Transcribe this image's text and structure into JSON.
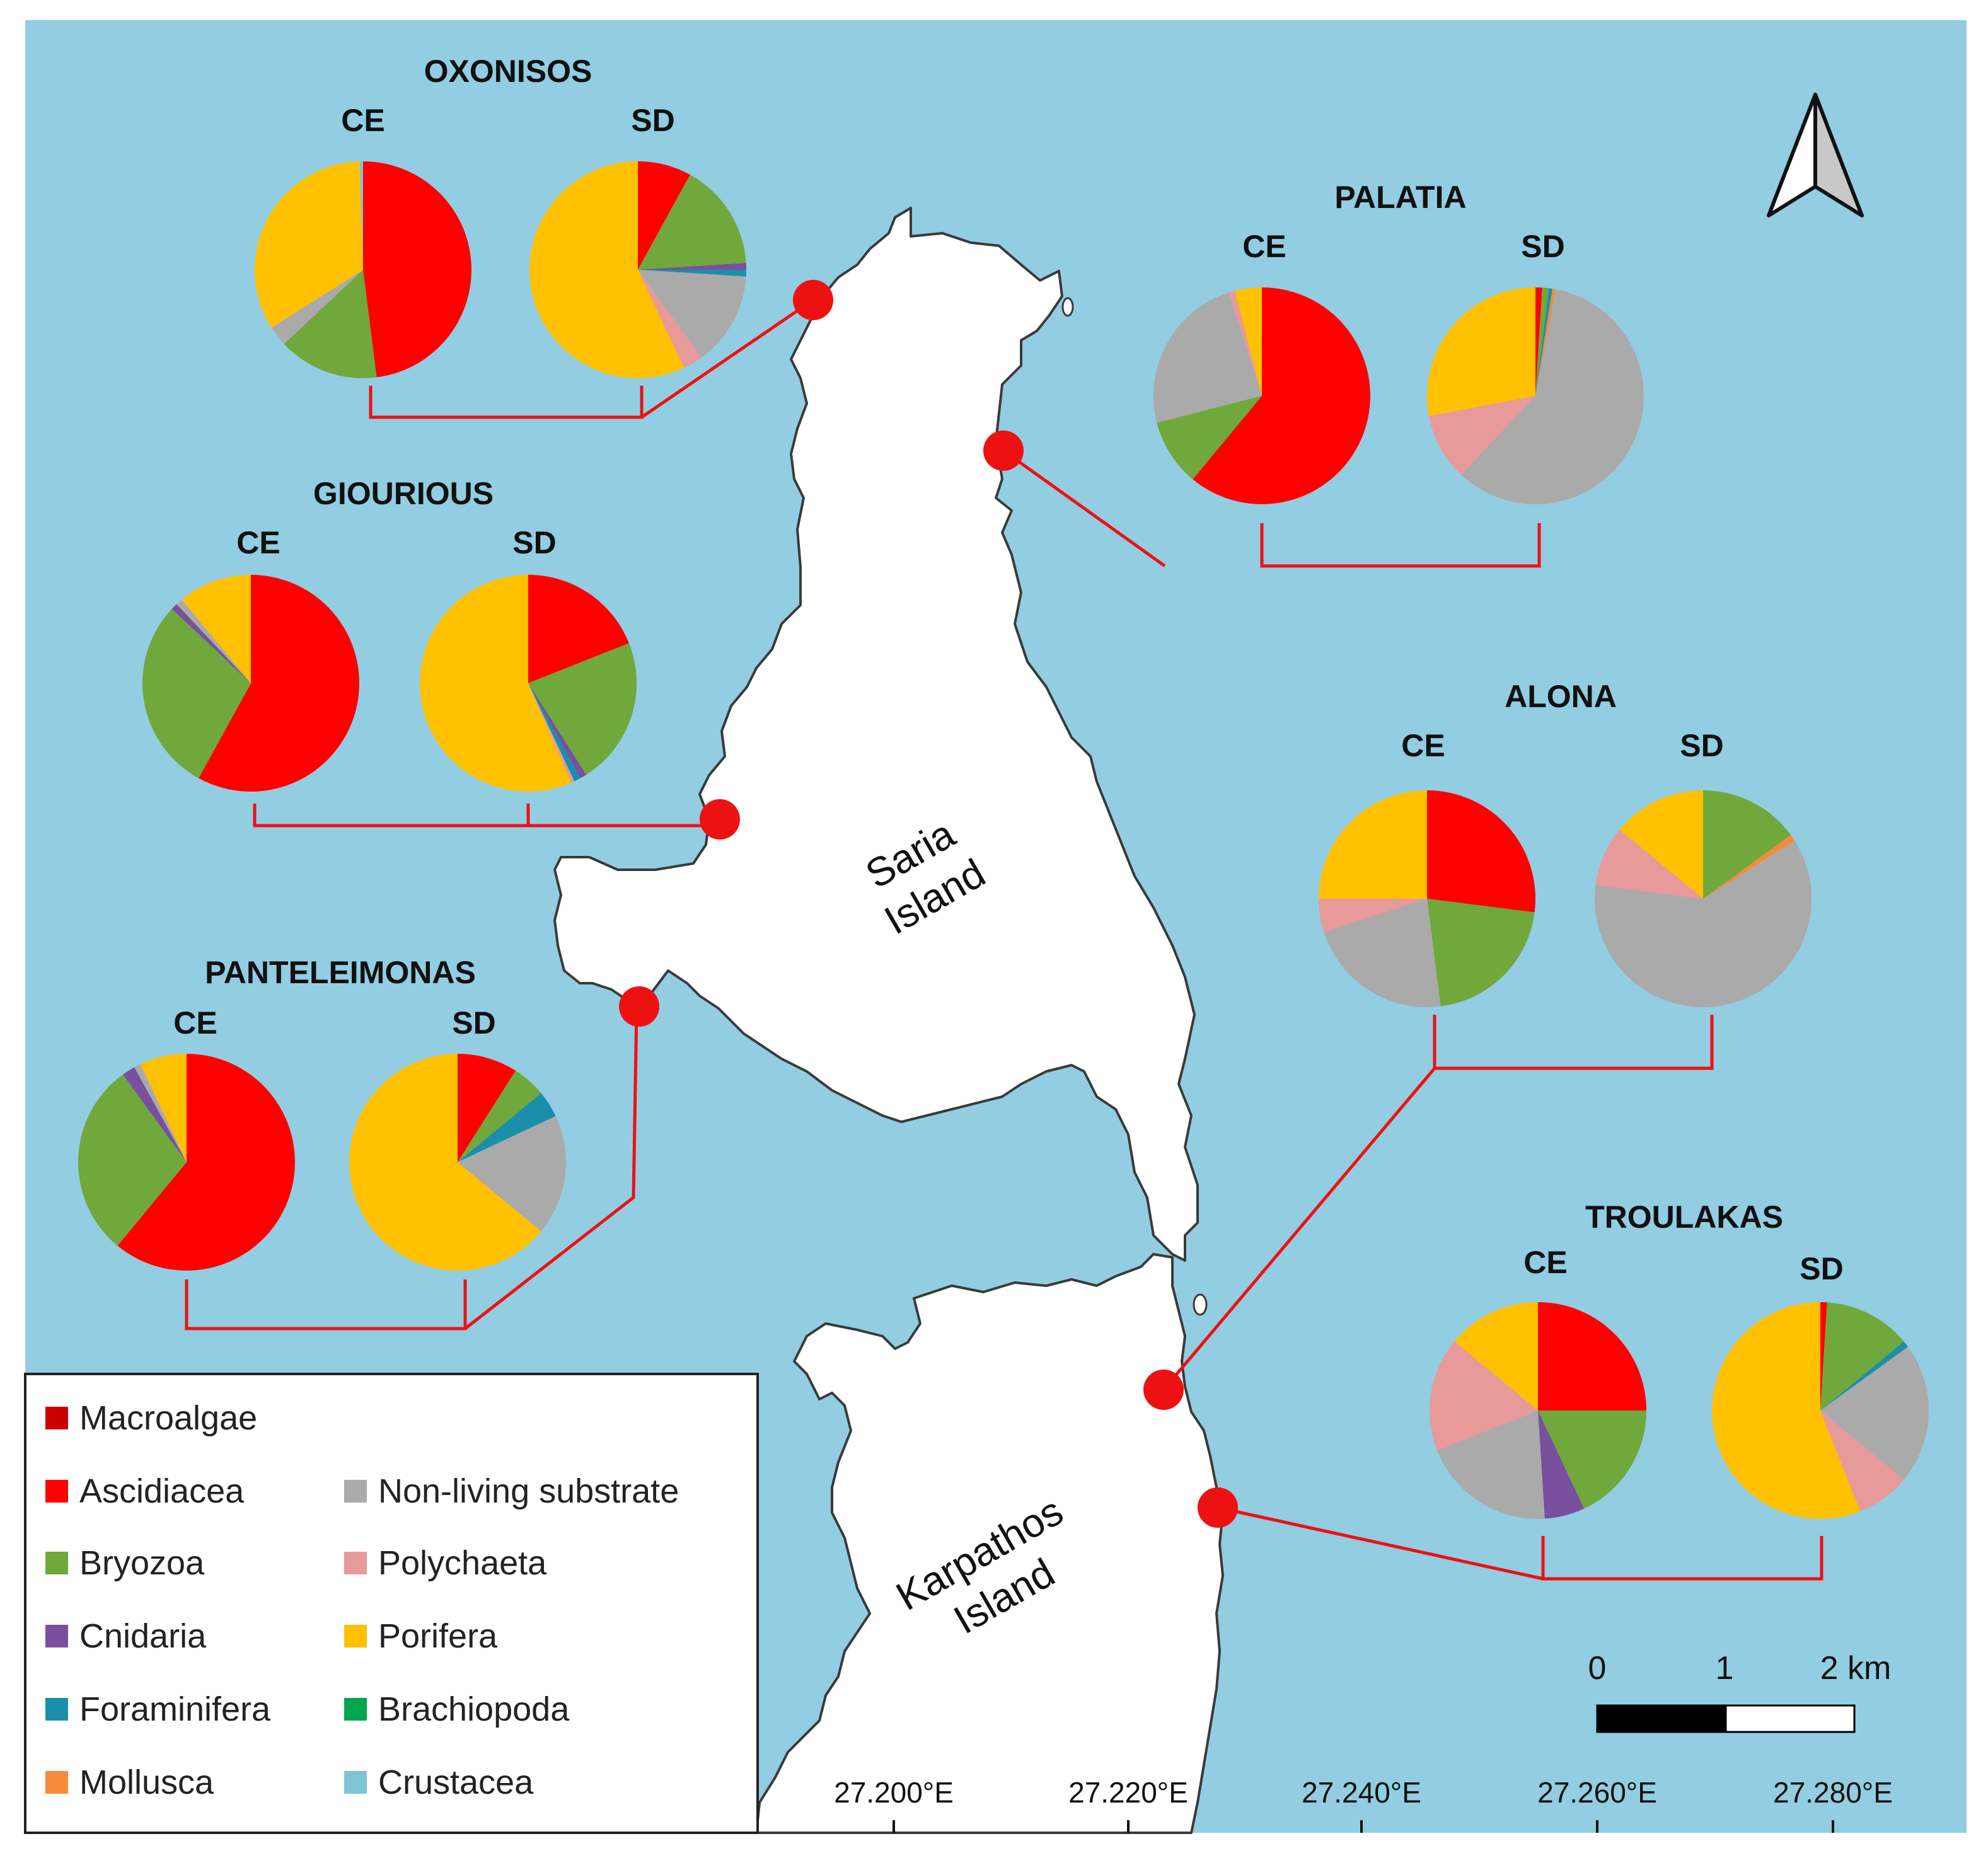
{
  "map": {
    "islands": [
      {
        "name": "saria",
        "label_lines": [
          "Saria",
          "Island"
        ]
      },
      {
        "name": "karpathos",
        "label_lines": [
          "Karpathos",
          "Island"
        ]
      }
    ],
    "colors": {
      "sea": "#92cde2",
      "land": "#ffffff",
      "coast": "#3a3a3a",
      "connector": "#ee1111",
      "site_marker": "#ee1111"
    },
    "column_labels": {
      "ce": "CE",
      "sd": "SD"
    },
    "scale_bar": {
      "labels": [
        "0",
        "1",
        "2 km"
      ]
    },
    "longitude_ticks": [
      "27.200°E",
      "27.220°E",
      "27.240°E",
      "27.260°E",
      "27.280°E"
    ],
    "north_arrow": {
      "icon": "north-arrow-icon"
    }
  },
  "legend": {
    "items": [
      {
        "label": "Macroalgae",
        "color": "#cc0000"
      },
      {
        "label": "Ascidiacea",
        "color": "#ff0000"
      },
      {
        "label": "Bryozoa",
        "color": "#70a83c"
      },
      {
        "label": "Cnidaria",
        "color": "#7a4f9e"
      },
      {
        "label": "Foraminifera",
        "color": "#1b8faa"
      },
      {
        "label": "Mollusca",
        "color": "#f58a3a"
      },
      {
        "label": "Non-living substrate",
        "color": "#aaaaaa"
      },
      {
        "label": "Polychaeta",
        "color": "#e8999a"
      },
      {
        "label": "Porifera",
        "color": "#ffc000"
      },
      {
        "label": "Brachiopoda",
        "color": "#00a650"
      },
      {
        "label": "Crustacea",
        "color": "#7fc3d6"
      }
    ]
  },
  "chart_data": {
    "type": "pie",
    "category_order": [
      "Macroalgae",
      "Ascidiacea",
      "Bryozoa",
      "Cnidaria",
      "Foraminifera",
      "Mollusca",
      "Non-living substrate",
      "Polychaeta",
      "Porifera",
      "Brachiopoda",
      "Crustacea"
    ],
    "sites": [
      {
        "name": "OXONISOS",
        "ce": {
          "Ascidiacea": 48,
          "Bryozoa": 15,
          "Crustacea": 0.5,
          "Non-living substrate": 3,
          "Porifera": 33.5
        },
        "sd": {
          "Ascidiacea": 8,
          "Bryozoa": 16,
          "Cnidaria": 1,
          "Foraminifera": 1,
          "Non-living substrate": 14,
          "Polychaeta": 3,
          "Porifera": 57
        }
      },
      {
        "name": "PALATIA",
        "ce": {
          "Ascidiacea": 61,
          "Bryozoa": 10,
          "Non-living substrate": 24,
          "Polychaeta": 1,
          "Porifera": 4
        },
        "sd": {
          "Ascidiacea": 1,
          "Mollusca": 0.5,
          "Bryozoa": 1,
          "Foraminifera": 0.5,
          "Non-living substrate": 59,
          "Polychaeta": 10,
          "Porifera": 28
        }
      },
      {
        "name": "GIOURIOUS",
        "ce": {
          "Ascidiacea": 58,
          "Bryozoa": 29,
          "Cnidaria": 1,
          "Non-living substrate": 1,
          "Porifera": 11
        },
        "sd": {
          "Ascidiacea": 19,
          "Bryozoa": 22,
          "Cnidaria": 1,
          "Foraminifera": 1,
          "Polychaeta": 0.5,
          "Porifera": 56.5
        }
      },
      {
        "name": "ALONA",
        "ce": {
          "Ascidiacea": 27,
          "Bryozoa": 21,
          "Non-living substrate": 22,
          "Polychaeta": 5,
          "Porifera": 25
        },
        "sd": {
          "Bryozoa": 15,
          "Mollusca": 1,
          "Non-living substrate": 61,
          "Polychaeta": 9,
          "Porifera": 14
        }
      },
      {
        "name": "PANTELEIMONAS",
        "ce": {
          "Ascidiacea": 61,
          "Bryozoa": 29,
          "Cnidaria": 2,
          "Non-living substrate": 1,
          "Porifera": 7
        },
        "sd": {
          "Ascidiacea": 9,
          "Bryozoa": 5,
          "Foraminifera": 4,
          "Non-living substrate": 18,
          "Porifera": 64
        }
      },
      {
        "name": "TROULAKAS",
        "ce": {
          "Ascidiacea": 25,
          "Bryozoa": 18,
          "Cnidaria": 6,
          "Non-living substrate": 20,
          "Polychaeta": 17,
          "Porifera": 14
        },
        "sd": {
          "Ascidiacea": 1,
          "Bryozoa": 13,
          "Foraminifera": 1,
          "Non-living substrate": 21,
          "Polychaeta": 8,
          "Porifera": 56
        }
      }
    ]
  }
}
